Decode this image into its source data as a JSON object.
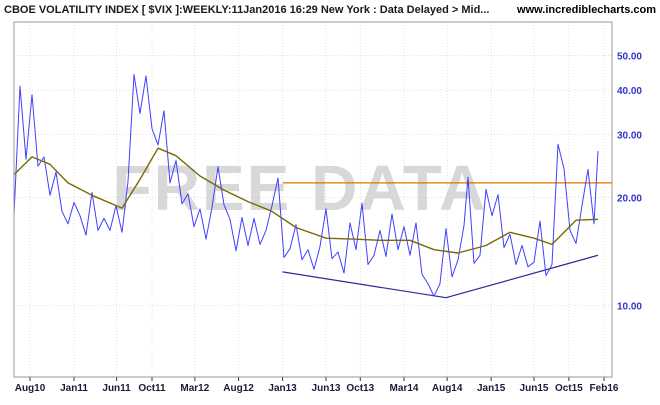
{
  "header": {
    "title": "CBOE VOLATILITY INDEX [ $VIX ]:WEEKLY:11Jan2016 16:29 New York : Data Delayed > Mid...",
    "site": "www.incrediblecharts.com"
  },
  "watermark": "FREE DATA",
  "colors": {
    "price_line": "#4040ff",
    "moving_average": "#7a6a00",
    "resistance_line": "#e07000",
    "trend_lines": "#2a2a9a",
    "grid": "#cccccc",
    "axis_text": "#3333cc"
  },
  "chart_data": {
    "type": "line",
    "title": "CBOE VOLATILITY INDEX [ $VIX ]",
    "xlabel": "",
    "ylabel": "",
    "y_scale": "log",
    "ylim": [
      6.3,
      62
    ],
    "xlim": [
      "2010-06-07",
      "2016-02-29"
    ],
    "grid": true,
    "y_ticks": [
      {
        "value": 10,
        "label": "10.00"
      },
      {
        "value": 20,
        "label": "20.00"
      },
      {
        "value": 30,
        "label": "30.00"
      },
      {
        "value": 40,
        "label": "40.00"
      },
      {
        "value": 50,
        "label": "50.00"
      }
    ],
    "x_ticks": [
      {
        "date": "2010-08-02",
        "label": "Aug10"
      },
      {
        "date": "2011-01-03",
        "label": "Jan11"
      },
      {
        "date": "2011-06-01",
        "label": "Jun11"
      },
      {
        "date": "2011-10-03",
        "label": "Oct11"
      },
      {
        "date": "2012-03-01",
        "label": "Mar12"
      },
      {
        "date": "2012-08-01",
        "label": "Aug12"
      },
      {
        "date": "2013-01-02",
        "label": "Jan13"
      },
      {
        "date": "2013-06-03",
        "label": "Jun13"
      },
      {
        "date": "2013-10-01",
        "label": "Oct13"
      },
      {
        "date": "2014-03-03",
        "label": "Mar14"
      },
      {
        "date": "2014-08-01",
        "label": "Aug14"
      },
      {
        "date": "2015-01-02",
        "label": "Jan15"
      },
      {
        "date": "2015-06-01",
        "label": "Jun15"
      },
      {
        "date": "2015-10-01",
        "label": "Oct15"
      },
      {
        "date": "2016-02-01",
        "label": "Feb16"
      }
    ],
    "series": [
      {
        "role": "price",
        "values": [
          [
            "2010-06-07",
            17.9
          ],
          [
            "2010-06-28",
            41.0
          ],
          [
            "2010-07-19",
            25.6
          ],
          [
            "2010-08-09",
            38.8
          ],
          [
            "2010-08-30",
            24.5
          ],
          [
            "2010-09-20",
            26.0
          ],
          [
            "2010-10-11",
            20.3
          ],
          [
            "2010-11-01",
            23.6
          ],
          [
            "2010-11-22",
            18.3
          ],
          [
            "2010-12-13",
            16.9
          ],
          [
            "2011-01-03",
            19.4
          ],
          [
            "2011-01-24",
            17.8
          ],
          [
            "2011-02-14",
            15.7
          ],
          [
            "2011-03-07",
            20.7
          ],
          [
            "2011-03-28",
            16.2
          ],
          [
            "2011-04-18",
            17.5
          ],
          [
            "2011-05-09",
            16.2
          ],
          [
            "2011-05-30",
            19.0
          ],
          [
            "2011-06-20",
            16.0
          ],
          [
            "2011-07-11",
            22.2
          ],
          [
            "2011-08-01",
            44.2
          ],
          [
            "2011-08-22",
            34.4
          ],
          [
            "2011-09-12",
            43.8
          ],
          [
            "2011-10-03",
            31.2
          ],
          [
            "2011-10-24",
            28.1
          ],
          [
            "2011-11-14",
            35.0
          ],
          [
            "2011-12-05",
            22.0
          ],
          [
            "2011-12-26",
            25.4
          ],
          [
            "2012-01-16",
            19.2
          ],
          [
            "2012-02-06",
            20.5
          ],
          [
            "2012-02-27",
            16.6
          ],
          [
            "2012-03-19",
            18.6
          ],
          [
            "2012-04-09",
            15.3
          ],
          [
            "2012-04-30",
            18.8
          ],
          [
            "2012-05-21",
            24.4
          ],
          [
            "2012-06-11",
            19.1
          ],
          [
            "2012-07-02",
            17.4
          ],
          [
            "2012-07-23",
            14.2
          ],
          [
            "2012-08-13",
            17.6
          ],
          [
            "2012-09-03",
            14.7
          ],
          [
            "2012-09-24",
            17.5
          ],
          [
            "2012-10-15",
            14.8
          ],
          [
            "2012-11-05",
            16.2
          ],
          [
            "2012-11-26",
            19.0
          ],
          [
            "2012-12-17",
            22.7
          ],
          [
            "2013-01-07",
            13.6
          ],
          [
            "2013-01-28",
            14.4
          ],
          [
            "2013-02-18",
            16.8
          ],
          [
            "2013-03-11",
            13.4
          ],
          [
            "2013-04-01",
            14.3
          ],
          [
            "2013-04-22",
            12.6
          ],
          [
            "2013-05-13",
            14.6
          ],
          [
            "2013-06-03",
            18.6
          ],
          [
            "2013-06-24",
            13.5
          ],
          [
            "2013-07-15",
            14.1
          ],
          [
            "2013-08-05",
            12.3
          ],
          [
            "2013-08-26",
            17.0
          ],
          [
            "2013-09-16",
            14.3
          ],
          [
            "2013-10-07",
            19.3
          ],
          [
            "2013-10-28",
            13.0
          ],
          [
            "2013-11-18",
            13.8
          ],
          [
            "2013-12-09",
            16.2
          ],
          [
            "2013-12-30",
            13.7
          ],
          [
            "2014-01-20",
            18.0
          ],
          [
            "2014-02-10",
            14.3
          ],
          [
            "2014-03-03",
            16.6
          ],
          [
            "2014-03-24",
            13.8
          ],
          [
            "2014-04-14",
            17.0
          ],
          [
            "2014-05-05",
            12.2
          ],
          [
            "2014-05-26",
            11.5
          ],
          [
            "2014-06-16",
            10.6
          ],
          [
            "2014-07-07",
            11.5
          ],
          [
            "2014-07-28",
            16.4
          ],
          [
            "2014-08-18",
            12.0
          ],
          [
            "2014-09-08",
            13.4
          ],
          [
            "2014-09-29",
            16.7
          ],
          [
            "2014-10-13",
            22.8
          ],
          [
            "2014-11-03",
            13.1
          ],
          [
            "2014-11-24",
            13.8
          ],
          [
            "2014-12-15",
            21.1
          ],
          [
            "2015-01-05",
            17.8
          ],
          [
            "2015-01-26",
            20.4
          ],
          [
            "2015-02-16",
            14.5
          ],
          [
            "2015-03-09",
            15.8
          ],
          [
            "2015-03-30",
            13.0
          ],
          [
            "2015-04-20",
            14.7
          ],
          [
            "2015-05-11",
            12.8
          ],
          [
            "2015-06-01",
            13.2
          ],
          [
            "2015-06-22",
            17.2
          ],
          [
            "2015-07-13",
            12.1
          ],
          [
            "2015-08-03",
            13.0
          ],
          [
            "2015-08-24",
            28.2
          ],
          [
            "2015-09-14",
            24.1
          ],
          [
            "2015-10-05",
            16.2
          ],
          [
            "2015-10-26",
            14.9
          ],
          [
            "2015-11-16",
            19.0
          ],
          [
            "2015-12-07",
            24.0
          ],
          [
            "2015-12-28",
            16.9
          ],
          [
            "2016-01-11",
            27.0
          ]
        ]
      },
      {
        "role": "moving-average",
        "values": [
          [
            "2010-06-07",
            23.2
          ],
          [
            "2010-08-09",
            26.0
          ],
          [
            "2010-10-11",
            24.8
          ],
          [
            "2010-12-13",
            22.0
          ],
          [
            "2011-03-07",
            20.3
          ],
          [
            "2011-06-20",
            18.7
          ],
          [
            "2011-08-22",
            22.5
          ],
          [
            "2011-10-24",
            27.5
          ],
          [
            "2011-12-26",
            26.2
          ],
          [
            "2012-03-19",
            23.0
          ],
          [
            "2012-06-11",
            21.0
          ],
          [
            "2012-09-03",
            19.5
          ],
          [
            "2012-11-26",
            18.3
          ],
          [
            "2013-02-18",
            16.5
          ],
          [
            "2013-06-03",
            15.4
          ],
          [
            "2013-09-16",
            15.3
          ],
          [
            "2013-12-09",
            15.2
          ],
          [
            "2014-03-24",
            15.2
          ],
          [
            "2014-06-16",
            14.3
          ],
          [
            "2014-09-08",
            14.0
          ],
          [
            "2014-12-15",
            14.7
          ],
          [
            "2015-03-09",
            16.0
          ],
          [
            "2015-06-01",
            15.4
          ],
          [
            "2015-08-03",
            14.8
          ],
          [
            "2015-10-26",
            17.3
          ],
          [
            "2016-01-11",
            17.4
          ]
        ]
      }
    ],
    "annotations": [
      {
        "kind": "horizontal-line",
        "role": "resistance",
        "y": 22.0,
        "x_start": "2013-01-02",
        "x_end": "2016-02-29"
      },
      {
        "kind": "trend-line",
        "role": "support-low",
        "points": [
          [
            "2013-01-02",
            12.4
          ],
          [
            "2014-07-28",
            10.5
          ]
        ]
      },
      {
        "kind": "trend-line",
        "role": "support-rising",
        "points": [
          [
            "2014-07-28",
            10.5
          ],
          [
            "2016-01-11",
            13.8
          ]
        ]
      }
    ]
  }
}
